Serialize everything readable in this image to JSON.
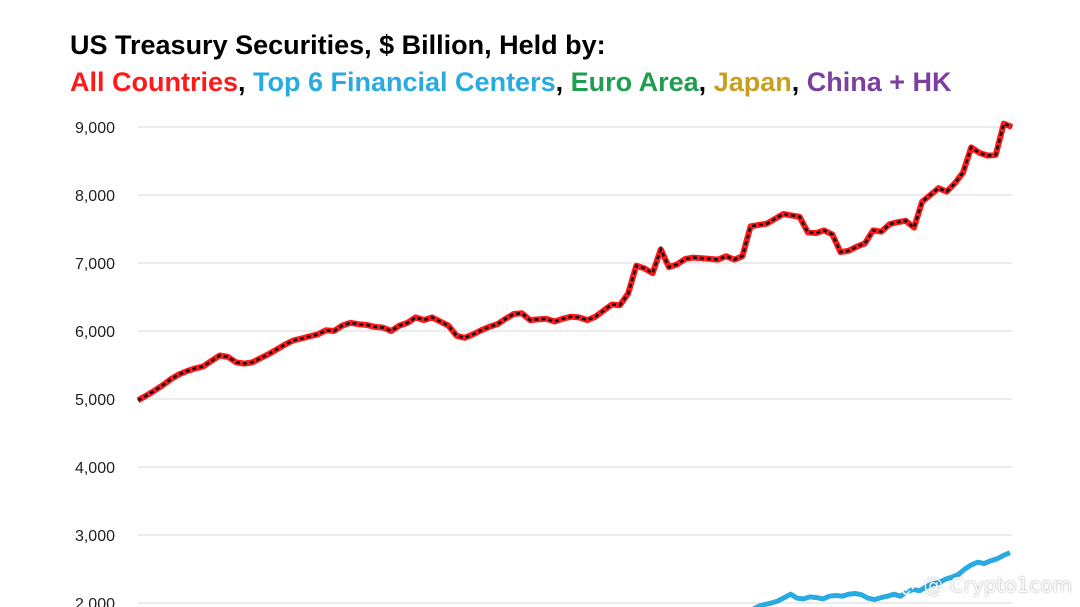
{
  "header": {
    "title": "US Treasury Securities, $ Billion, Held by:",
    "legend": [
      {
        "label": "All Countries",
        "color": "#ff1a1a"
      },
      {
        "label": "Top 6 Financial Centers",
        "color": "#29abe2"
      },
      {
        "label": "Euro Area",
        "color": "#1f9e50"
      },
      {
        "label": "Japan",
        "color": "#c8a020"
      },
      {
        "label": "China + HK",
        "color": "#7b3fa0"
      }
    ],
    "separator": ", "
  },
  "watermark": {
    "text": "@ Crypto1com",
    "icon": "binance-logo-icon"
  },
  "chart_data": {
    "type": "line",
    "title": "US Treasury Securities, $ Billion, Held by:",
    "xlabel": "",
    "ylabel": "",
    "ylim": [
      2000,
      9000
    ],
    "yticks": [
      "2,000",
      "3,000",
      "4,000",
      "5,000",
      "6,000",
      "7,000",
      "8,000",
      "9,000"
    ],
    "grid": true,
    "series": [
      {
        "name": "All Countries",
        "color": "#ff1a1a",
        "style": "red line with black dashed overlay",
        "values": [
          4980,
          5050,
          5120,
          5200,
          5290,
          5360,
          5410,
          5450,
          5480,
          5560,
          5640,
          5620,
          5540,
          5520,
          5540,
          5600,
          5660,
          5730,
          5800,
          5860,
          5890,
          5920,
          5950,
          6010,
          6000,
          6080,
          6120,
          6100,
          6090,
          6060,
          6050,
          6000,
          6080,
          6120,
          6200,
          6160,
          6200,
          6140,
          6080,
          5930,
          5900,
          5950,
          6010,
          6060,
          6100,
          6180,
          6250,
          6260,
          6160,
          6170,
          6180,
          6140,
          6180,
          6210,
          6200,
          6160,
          6210,
          6300,
          6390,
          6380,
          6550,
          6960,
          6920,
          6850,
          7200,
          6940,
          6980,
          7060,
          7080,
          7070,
          7060,
          7050,
          7100,
          7050,
          7100,
          7540,
          7560,
          7580,
          7650,
          7720,
          7700,
          7680,
          7450,
          7440,
          7480,
          7420,
          7160,
          7180,
          7240,
          7290,
          7480,
          7460,
          7570,
          7600,
          7620,
          7520,
          7900,
          8000,
          8100,
          8050,
          8170,
          8330,
          8700,
          8620,
          8580,
          8590,
          9050,
          9000
        ]
      },
      {
        "name": "Top 6 Financial Centers",
        "color": "#29abe2",
        "values": [
          1900,
          1950,
          1980,
          2000,
          2030,
          2080,
          2130,
          2070,
          2060,
          2090,
          2080,
          2060,
          2100,
          2110,
          2100,
          2130,
          2140,
          2120,
          2070,
          2050,
          2080,
          2100,
          2130,
          2100,
          2160,
          2200,
          2180,
          2240,
          2280,
          2300,
          2350,
          2380,
          2420,
          2500,
          2560,
          2600,
          2580,
          2620,
          2650,
          2700,
          2740
        ]
      }
    ]
  }
}
